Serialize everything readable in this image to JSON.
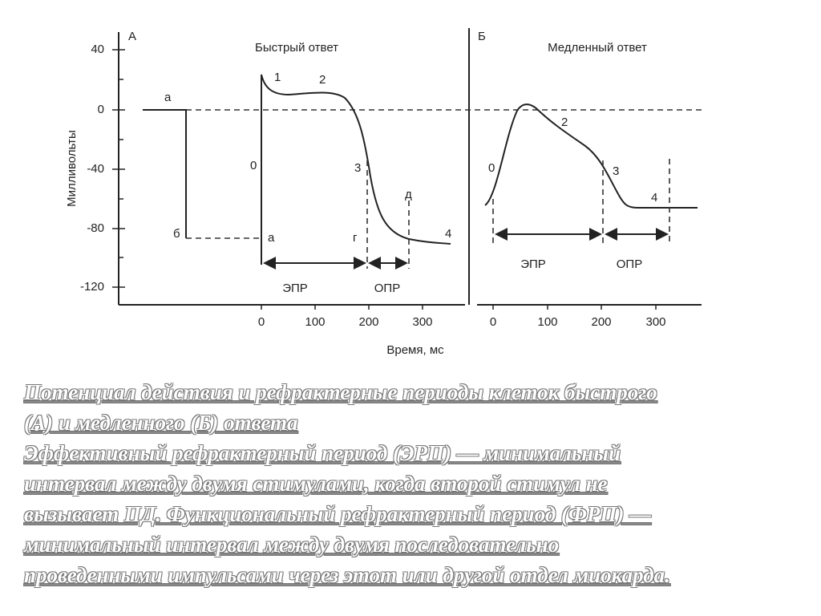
{
  "figure": {
    "y_axis_label": "Милливольты",
    "x_axis_label": "Время,  мс",
    "y_ticks": [
      "40",
      "0",
      "-40",
      "-80",
      "-120"
    ],
    "panel_a": {
      "letter": "А",
      "title": "Быстрый ответ",
      "x_ticks": [
        "0",
        "100",
        "200",
        "300"
      ],
      "labels": [
        "а",
        "б",
        "0",
        "1",
        "2",
        "3",
        "а",
        "г",
        "д",
        "4",
        "ЭПР",
        "ОПР"
      ]
    },
    "panel_b": {
      "letter": "Б",
      "title": "Медленный ответ",
      "x_ticks": [
        "0",
        "100",
        "200",
        "300"
      ],
      "labels": [
        "0",
        "2",
        "3",
        "4",
        "ЭПР",
        "ОПР"
      ]
    }
  },
  "caption": {
    "lines": [
      "Потенциал действия и рефрактерные периоды клеток быстрого",
      "(А) и медленного (Б) ответа",
      "Эффективный рефрактерный период (ЭРП) — минимальный",
      "интервал между двумя стимулами, когда второй стимул не",
      "вызывает ПД. Функциональный рефрактерный период (ФРП) —",
      "минимальный интервал между двумя последовательно",
      "проведенными импульсами через этот или другой отдел миокарда."
    ]
  }
}
